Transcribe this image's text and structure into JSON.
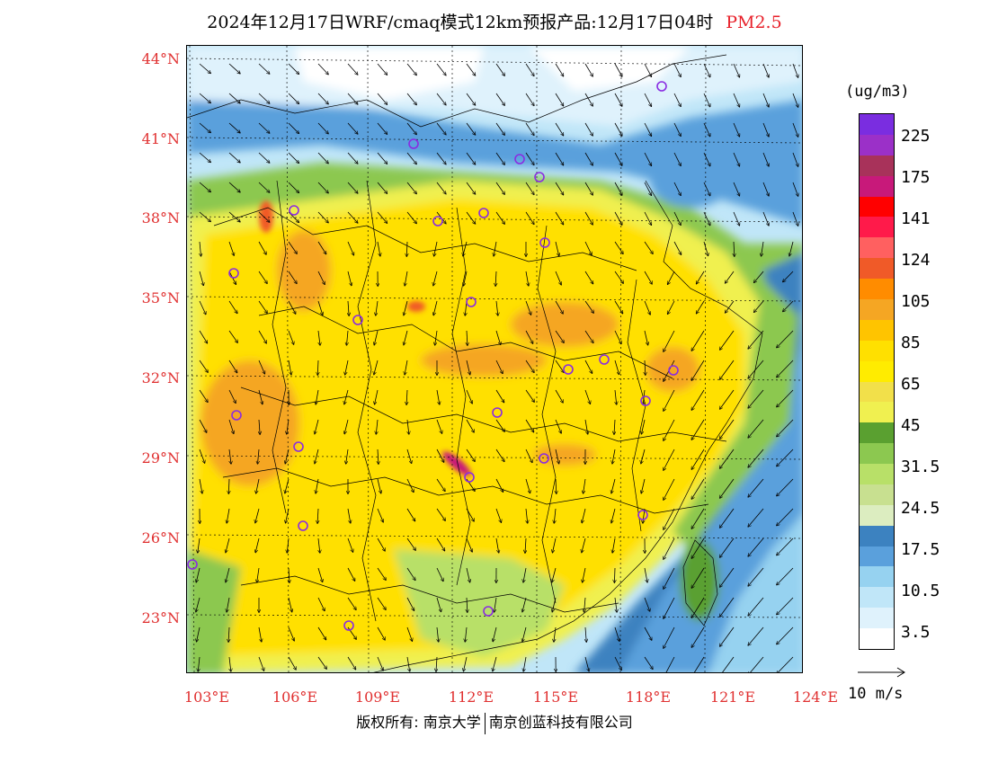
{
  "title": {
    "main": "2024年12月17日WRF/cmaq模式12km预报产品:12月17日04时",
    "pollutant": "PM2.5"
  },
  "map": {
    "lat_labels": [
      "44°N",
      "41°N",
      "38°N",
      "35°N",
      "32°N",
      "29°N",
      "26°N",
      "23°N"
    ],
    "lon_labels": [
      "103°E",
      "106°E",
      "109°E",
      "112°E",
      "115°E",
      "118°E",
      "121°E",
      "124°E"
    ],
    "lon_range": [
      103,
      124
    ],
    "lat_range": [
      21,
      44.5
    ],
    "station_marker_color": "#8a2be2"
  },
  "legend": {
    "unit": "(ug/m3)",
    "labels": [
      "225",
      "175",
      "141",
      "124",
      "105",
      "85",
      "65",
      "45",
      "31.5",
      "24.5",
      "17.5",
      "10.5",
      "3.5"
    ],
    "colors": [
      "#7a2de0",
      "#9b30c8",
      "#a8325a",
      "#c8197a",
      "#ff0000",
      "#ff1a4a",
      "#ff6060",
      "#f05a28",
      "#ff8c00",
      "#f5a623",
      "#ffc400",
      "#ffe000",
      "#ffec00",
      "#f2e04a",
      "#f0f050",
      "#5aa030",
      "#8cc850",
      "#b8e068",
      "#c8e090",
      "#dcedc0",
      "#3c82c0",
      "#5aa0dc",
      "#96d2f0",
      "#c0e6f8",
      "#dff2fc",
      "#ffffff"
    ]
  },
  "wind_scale": {
    "label": "10 m/s"
  },
  "copyright": {
    "left": "版权所有: 南京大学",
    "right": "南京创蓝科技有限公司"
  }
}
